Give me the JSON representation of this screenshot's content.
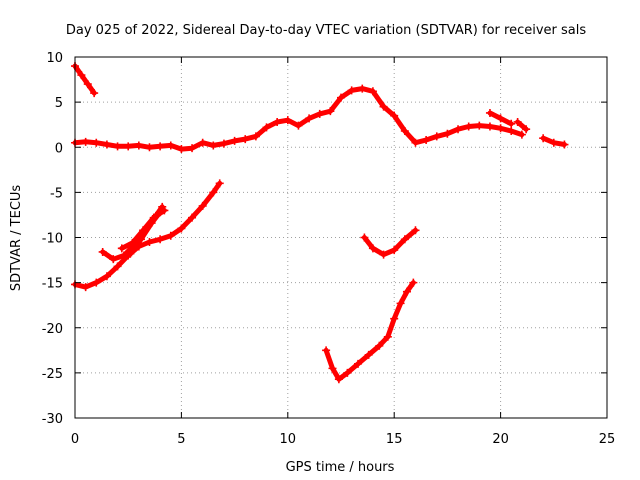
{
  "chart_data": {
    "type": "scatter",
    "title": "Day 025 of 2022, Sidereal Day-to-day VTEC variation (SDTVAR) for receiver sals",
    "xlabel": "GPS time / hours",
    "ylabel": "SDTVAR / TECUs",
    "xlim": [
      0,
      25
    ],
    "ylim": [
      -30,
      10
    ],
    "xticks": [
      0,
      5,
      10,
      15,
      20,
      25
    ],
    "yticks": [
      10,
      5,
      0,
      -5,
      -10,
      -15,
      -20,
      -25,
      -30
    ],
    "grid": true,
    "legend": "none",
    "marker": "plus",
    "color": "#ff0000",
    "series": [
      {
        "x": [
          0.0,
          0.3,
          0.6,
          0.9
        ],
        "y": [
          9.0,
          8.0,
          7.0,
          6.0
        ]
      },
      {
        "x": [
          0.0,
          0.5,
          1.0,
          1.5,
          2.0,
          2.5,
          3.0,
          3.5,
          4.0,
          4.5,
          5.0,
          5.5,
          6.0,
          6.5,
          7.0,
          7.5,
          8.0,
          8.5,
          9.0,
          9.5,
          10.0,
          10.5,
          11.0,
          11.5,
          12.0,
          12.5,
          13.0,
          13.5,
          14.0,
          14.5,
          15.0,
          15.5,
          16.0,
          16.5,
          17.0,
          17.5,
          18.0,
          18.5,
          19.0,
          19.5,
          20.0,
          20.5,
          21.0
        ],
        "y": [
          0.5,
          0.6,
          0.5,
          0.3,
          0.1,
          0.1,
          0.2,
          0.0,
          0.1,
          0.2,
          -0.2,
          -0.1,
          0.5,
          0.2,
          0.4,
          0.7,
          0.9,
          1.2,
          2.2,
          2.8,
          3.0,
          2.4,
          3.2,
          3.7,
          4.0,
          5.5,
          6.3,
          6.5,
          6.2,
          4.5,
          3.5,
          1.8,
          0.5,
          0.8,
          1.2,
          1.5,
          2.0,
          2.3,
          2.4,
          2.3,
          2.1,
          1.8,
          1.4
        ]
      },
      {
        "x": [
          19.5,
          20.0,
          20.5
        ],
        "y": [
          3.8,
          3.2,
          2.6
        ]
      },
      {
        "x": [
          20.8,
          21.2
        ],
        "y": [
          2.8,
          2.0
        ]
      },
      {
        "x": [
          22.0,
          22.5,
          23.0
        ],
        "y": [
          1.0,
          0.5,
          0.3
        ]
      },
      {
        "x": [
          0.0,
          0.5,
          1.0,
          1.5,
          2.0,
          2.5,
          3.0,
          3.5,
          4.0,
          4.5,
          5.0,
          5.5,
          6.0,
          6.5,
          6.8
        ],
        "y": [
          -15.2,
          -15.5,
          -15.0,
          -14.3,
          -13.2,
          -12.0,
          -11.0,
          -10.5,
          -10.2,
          -9.8,
          -9.0,
          -7.8,
          -6.5,
          -5.0,
          -4.0
        ]
      },
      {
        "x": [
          1.3,
          1.8,
          2.3,
          2.8,
          3.3,
          3.8,
          4.1
        ],
        "y": [
          -11.6,
          -12.4,
          -12.0,
          -10.8,
          -9.2,
          -7.6,
          -6.6
        ]
      },
      {
        "x": [
          2.2,
          2.7,
          3.2,
          3.7,
          4.2
        ],
        "y": [
          -11.2,
          -10.6,
          -9.2,
          -7.8,
          -7.0
        ]
      },
      {
        "x": [
          2.6,
          3.1,
          3.6,
          4.0
        ],
        "y": [
          -11.8,
          -10.2,
          -8.4,
          -7.2
        ]
      },
      {
        "x": [
          13.6,
          14.0,
          14.5,
          15.0,
          15.5,
          16.0
        ],
        "y": [
          -10.0,
          -11.2,
          -11.9,
          -11.4,
          -10.2,
          -9.2
        ]
      },
      {
        "x": [
          11.8,
          12.1,
          12.4,
          12.8,
          13.3,
          13.8,
          14.3,
          14.7,
          15.0,
          15.3,
          15.6,
          15.9
        ],
        "y": [
          -22.5,
          -24.5,
          -25.7,
          -25.0,
          -24.0,
          -23.0,
          -22.0,
          -21.0,
          -19.0,
          -17.3,
          -16.0,
          -15.0
        ]
      }
    ]
  }
}
